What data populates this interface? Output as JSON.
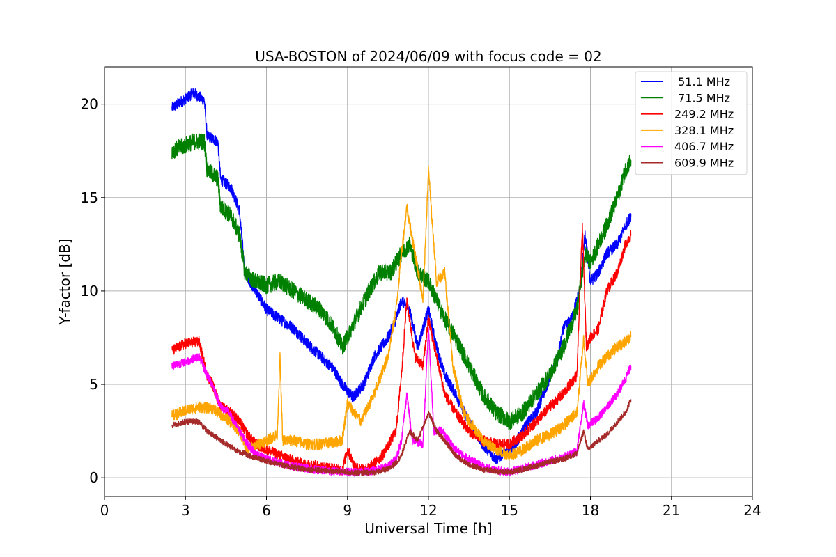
{
  "chart_data": {
    "type": "line",
    "title": "USA-BOSTON of 2024/06/09 with focus code = 02",
    "xlabel": "Universal Time [h]",
    "ylabel": "Y-factor [dB]",
    "xlim": [
      0,
      24
    ],
    "ylim": [
      -1,
      22
    ],
    "xticks": [
      0,
      3,
      6,
      9,
      12,
      15,
      18,
      21,
      24
    ],
    "yticks": [
      0,
      5,
      10,
      15,
      20
    ],
    "xtick_labels": [
      "0",
      "3",
      "6",
      "9",
      "12",
      "15",
      "18",
      "21",
      "24"
    ],
    "ytick_labels": [
      "0",
      "5",
      "10",
      "15",
      "20"
    ],
    "grid": true,
    "legend_position": "top-right",
    "series": [
      {
        "name": " 51.1 MHz",
        "color": "#0000ff",
        "noise": 0.3,
        "x": [
          2.5,
          3.0,
          3.3,
          3.7,
          3.8,
          4.2,
          4.3,
          4.7,
          5.0,
          5.2,
          5.6,
          6.0,
          6.5,
          7.0,
          7.5,
          8.0,
          8.5,
          8.8,
          9.2,
          9.6,
          10.0,
          10.5,
          10.8,
          11.0,
          11.3,
          11.6,
          12.0,
          12.3,
          12.6,
          13.0,
          13.5,
          14.0,
          14.5,
          15.0,
          15.3,
          15.6,
          16.0,
          16.4,
          16.8,
          17.0,
          17.3,
          17.6,
          17.8,
          18.0,
          18.3,
          18.6,
          19.0,
          19.3,
          19.5
        ],
        "y": [
          19.8,
          20.3,
          20.6,
          20.2,
          18.3,
          18.0,
          16.0,
          15.5,
          14.3,
          11.0,
          10.0,
          9.0,
          8.5,
          8.0,
          7.2,
          6.5,
          5.8,
          5.0,
          4.3,
          5.0,
          6.5,
          7.5,
          8.5,
          9.5,
          9.0,
          7.0,
          9.0,
          7.0,
          5.5,
          4.5,
          3.0,
          1.8,
          1.0,
          1.5,
          2.0,
          2.8,
          3.5,
          5.0,
          6.5,
          8.0,
          8.5,
          10.0,
          13.0,
          10.5,
          11.0,
          12.0,
          12.5,
          13.5,
          14.0
        ]
      },
      {
        "name": " 71.5 MHz",
        "color": "#008000",
        "noise": 0.45,
        "x": [
          2.5,
          3.0,
          3.3,
          3.7,
          3.8,
          4.2,
          4.3,
          4.7,
          5.0,
          5.2,
          5.6,
          6.0,
          6.5,
          7.0,
          7.5,
          8.0,
          8.5,
          8.8,
          9.0,
          9.4,
          9.8,
          10.2,
          10.6,
          11.0,
          11.3,
          11.6,
          12.0,
          12.3,
          12.6,
          13.0,
          13.5,
          14.0,
          14.5,
          15.0,
          15.5,
          16.0,
          16.5,
          17.0,
          17.5,
          17.8,
          18.0,
          18.3,
          18.6,
          19.0,
          19.3,
          19.5
        ],
        "y": [
          17.5,
          17.8,
          18.0,
          18.0,
          16.5,
          16.0,
          14.5,
          14.0,
          13.0,
          11.0,
          10.5,
          10.3,
          10.5,
          10.0,
          9.5,
          9.0,
          8.0,
          7.0,
          7.5,
          8.8,
          10.0,
          11.0,
          11.0,
          12.0,
          12.5,
          11.0,
          10.5,
          9.5,
          8.5,
          7.5,
          6.0,
          4.5,
          3.5,
          3.0,
          3.5,
          4.5,
          5.5,
          7.0,
          9.0,
          12.0,
          11.5,
          12.5,
          13.5,
          15.0,
          16.5,
          17.0
        ]
      },
      {
        "name": "249.2 MHz",
        "color": "#ff0000",
        "noise": 0.28,
        "x": [
          2.5,
          3.0,
          3.5,
          3.8,
          4.0,
          4.3,
          4.7,
          5.0,
          5.3,
          5.6,
          6.0,
          6.5,
          7.0,
          7.5,
          8.0,
          8.5,
          8.8,
          9.0,
          9.3,
          9.8,
          10.3,
          10.8,
          11.0,
          11.2,
          11.5,
          11.8,
          12.0,
          12.3,
          12.6,
          13.0,
          13.5,
          14.0,
          14.5,
          15.0,
          15.5,
          16.0,
          16.5,
          17.0,
          17.5,
          17.7,
          17.85,
          18.0,
          18.3,
          18.6,
          19.0,
          19.3,
          19.5
        ],
        "y": [
          6.8,
          7.2,
          7.3,
          5.5,
          5.0,
          3.8,
          3.5,
          3.0,
          2.3,
          1.8,
          1.5,
          1.2,
          0.9,
          0.7,
          0.6,
          0.5,
          0.4,
          1.5,
          0.5,
          0.5,
          1.2,
          2.5,
          5.5,
          9.5,
          6.5,
          6.0,
          8.5,
          6.5,
          4.5,
          3.5,
          2.5,
          2.0,
          1.8,
          1.8,
          2.3,
          3.0,
          3.8,
          4.5,
          5.5,
          13.5,
          7.0,
          7.5,
          8.0,
          10.0,
          11.0,
          12.5,
          13.0
        ]
      },
      {
        "name": "328.1 MHz",
        "color": "#ffa500",
        "noise": 0.3,
        "x": [
          2.5,
          3.0,
          3.5,
          4.0,
          4.5,
          5.0,
          5.3,
          6.0,
          6.4,
          6.5,
          6.6,
          7.0,
          7.5,
          8.0,
          8.5,
          8.8,
          9.0,
          9.5,
          10.0,
          10.5,
          10.8,
          11.0,
          11.2,
          11.5,
          11.8,
          12.0,
          12.3,
          12.6,
          12.9,
          13.3,
          14.0,
          14.5,
          15.0,
          15.5,
          16.0,
          16.5,
          17.0,
          17.5,
          17.75,
          17.9,
          18.3,
          18.6,
          19.0,
          19.3,
          19.5
        ],
        "y": [
          3.3,
          3.6,
          3.8,
          3.7,
          3.2,
          2.5,
          1.5,
          2.0,
          2.3,
          6.5,
          2.0,
          2.0,
          1.8,
          1.8,
          1.9,
          2.0,
          4.0,
          3.0,
          4.5,
          6.5,
          9.0,
          12.0,
          14.5,
          12.0,
          9.5,
          16.5,
          10.5,
          11.0,
          6.0,
          3.5,
          2.0,
          1.5,
          1.2,
          1.5,
          2.0,
          2.3,
          2.8,
          3.5,
          7.5,
          5.0,
          6.0,
          6.5,
          7.0,
          7.3,
          7.6
        ]
      },
      {
        "name": "406.7 MHz",
        "color": "#ff00ff",
        "noise": 0.22,
        "x": [
          2.5,
          3.0,
          3.5,
          3.8,
          4.0,
          4.3,
          4.6,
          5.0,
          5.3,
          5.6,
          6.0,
          6.5,
          7.0,
          7.5,
          8.0,
          8.5,
          9.0,
          9.5,
          10.0,
          10.5,
          10.8,
          11.0,
          11.2,
          11.4,
          11.8,
          12.0,
          12.2,
          12.5,
          13.0,
          13.5,
          14.0,
          14.5,
          15.0,
          15.5,
          16.0,
          16.5,
          17.0,
          17.5,
          17.75,
          17.9,
          18.3,
          18.6,
          19.0,
          19.3,
          19.5
        ],
        "y": [
          6.0,
          6.2,
          6.5,
          5.5,
          5.0,
          3.8,
          3.5,
          2.5,
          1.8,
          1.3,
          1.0,
          0.8,
          0.6,
          0.5,
          0.4,
          0.35,
          0.3,
          0.3,
          0.4,
          0.6,
          1.0,
          2.0,
          4.5,
          2.0,
          1.8,
          8.0,
          2.5,
          2.5,
          1.5,
          1.0,
          0.6,
          0.4,
          0.3,
          0.5,
          0.7,
          0.9,
          1.1,
          1.4,
          4.0,
          2.8,
          3.2,
          3.8,
          4.5,
          5.3,
          6.0
        ]
      },
      {
        "name": "609.9 MHz",
        "color": "#a52a2a",
        "noise": 0.15,
        "x": [
          2.5,
          3.0,
          3.5,
          3.8,
          4.0,
          4.5,
          5.0,
          5.5,
          6.0,
          6.5,
          7.0,
          7.5,
          8.0,
          8.5,
          9.0,
          9.5,
          10.0,
          10.5,
          10.8,
          11.0,
          11.3,
          11.6,
          12.0,
          12.3,
          12.6,
          13.0,
          13.5,
          14.0,
          14.5,
          15.0,
          15.5,
          16.0,
          16.5,
          17.0,
          17.5,
          17.75,
          17.9,
          18.3,
          18.6,
          19.0,
          19.3,
          19.5
        ],
        "y": [
          2.8,
          3.0,
          3.0,
          2.5,
          2.3,
          1.8,
          1.4,
          1.1,
          0.9,
          0.7,
          0.55,
          0.45,
          0.4,
          0.35,
          0.3,
          0.25,
          0.3,
          0.45,
          0.8,
          1.2,
          2.5,
          2.0,
          3.5,
          2.5,
          2.0,
          1.2,
          0.7,
          0.45,
          0.35,
          0.3,
          0.45,
          0.65,
          0.85,
          1.0,
          1.3,
          2.5,
          1.5,
          2.0,
          2.3,
          3.0,
          3.5,
          4.2
        ]
      }
    ]
  }
}
